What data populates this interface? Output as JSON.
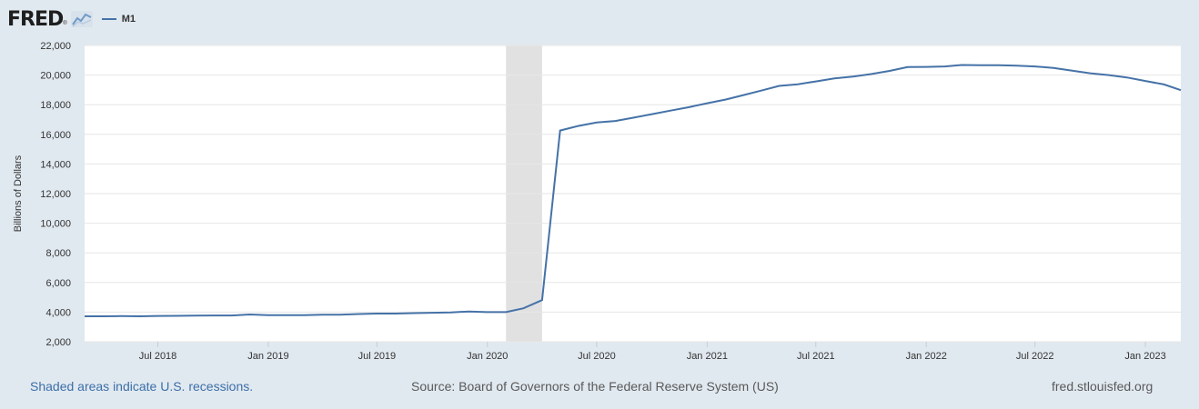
{
  "header": {
    "logo_text": "FRED",
    "logo_reg": "®",
    "legend_label": "M1"
  },
  "footer": {
    "recession_note": "Shaded areas indicate U.S. recessions.",
    "source": "Source: Board of Governors of the Federal Reserve System (US)",
    "site": "fred.stlouisfed.org"
  },
  "colors": {
    "line": "#4572a7",
    "recession": "#e1e1e1",
    "background": "#e1e9f0",
    "plot": "#ffffff",
    "grid": "#e6e6e6"
  },
  "chart_data": {
    "type": "line",
    "title": "",
    "xlabel": "",
    "ylabel": "Billions of Dollars",
    "ylim": [
      2000,
      22000
    ],
    "yticks": [
      2000,
      4000,
      6000,
      8000,
      10000,
      12000,
      14000,
      16000,
      18000,
      20000,
      22000
    ],
    "ytick_labels": [
      "2,000",
      "4,000",
      "6,000",
      "8,000",
      "10,000",
      "12,000",
      "14,000",
      "16,000",
      "18,000",
      "20,000",
      "22,000"
    ],
    "xlim": [
      "2018-03-01",
      "2023-03-01"
    ],
    "xticks": [
      {
        "date": "2018-07-01",
        "label": "Jul 2018"
      },
      {
        "date": "2019-01-01",
        "label": "Jan 2019"
      },
      {
        "date": "2019-07-01",
        "label": "Jul 2019"
      },
      {
        "date": "2020-01-01",
        "label": "Jan 2020"
      },
      {
        "date": "2020-07-01",
        "label": "Jul 2020"
      },
      {
        "date": "2021-01-01",
        "label": "Jan 2021"
      },
      {
        "date": "2021-07-01",
        "label": "Jul 2021"
      },
      {
        "date": "2022-01-01",
        "label": "Jan 2022"
      },
      {
        "date": "2022-07-01",
        "label": "Jul 2022"
      },
      {
        "date": "2023-01-01",
        "label": "Jan 2023"
      }
    ],
    "recessions": [
      {
        "start": "2020-02-01",
        "end": "2020-04-01"
      }
    ],
    "series": [
      {
        "name": "M1",
        "dates": [
          "2018-03-01",
          "2018-04-01",
          "2018-05-01",
          "2018-06-01",
          "2018-07-01",
          "2018-08-01",
          "2018-09-01",
          "2018-10-01",
          "2018-11-01",
          "2018-12-01",
          "2019-01-01",
          "2019-02-01",
          "2019-03-01",
          "2019-04-01",
          "2019-05-01",
          "2019-06-01",
          "2019-07-01",
          "2019-08-01",
          "2019-09-01",
          "2019-10-01",
          "2019-11-01",
          "2019-12-01",
          "2020-01-01",
          "2020-02-01",
          "2020-03-01",
          "2020-04-01",
          "2020-05-01",
          "2020-06-01",
          "2020-07-01",
          "2020-08-01",
          "2020-09-01",
          "2020-10-01",
          "2020-11-01",
          "2020-12-01",
          "2021-01-01",
          "2021-02-01",
          "2021-03-01",
          "2021-04-01",
          "2021-05-01",
          "2021-06-01",
          "2021-07-01",
          "2021-08-01",
          "2021-09-01",
          "2021-10-01",
          "2021-11-01",
          "2021-12-01",
          "2022-01-01",
          "2022-02-01",
          "2022-03-01",
          "2022-04-01",
          "2022-05-01",
          "2022-06-01",
          "2022-07-01",
          "2022-08-01",
          "2022-09-01",
          "2022-10-01",
          "2022-11-01",
          "2022-12-01",
          "2023-01-01",
          "2023-02-01",
          "2023-03-01"
        ],
        "values": [
          3720,
          3720,
          3730,
          3720,
          3740,
          3750,
          3760,
          3770,
          3770,
          3840,
          3790,
          3800,
          3790,
          3830,
          3830,
          3870,
          3900,
          3900,
          3930,
          3960,
          3980,
          4040,
          4000,
          4000,
          4260,
          4810,
          16260,
          16570,
          16800,
          16900,
          17130,
          17360,
          17600,
          17830,
          18100,
          18350,
          18630,
          18950,
          19270,
          19380,
          19570,
          19770,
          19900,
          20070,
          20280,
          20540,
          20550,
          20580,
          20680,
          20670,
          20660,
          20630,
          20580,
          20480,
          20300,
          20120,
          20000,
          19840,
          19600,
          19370,
          18980
        ]
      }
    ]
  }
}
